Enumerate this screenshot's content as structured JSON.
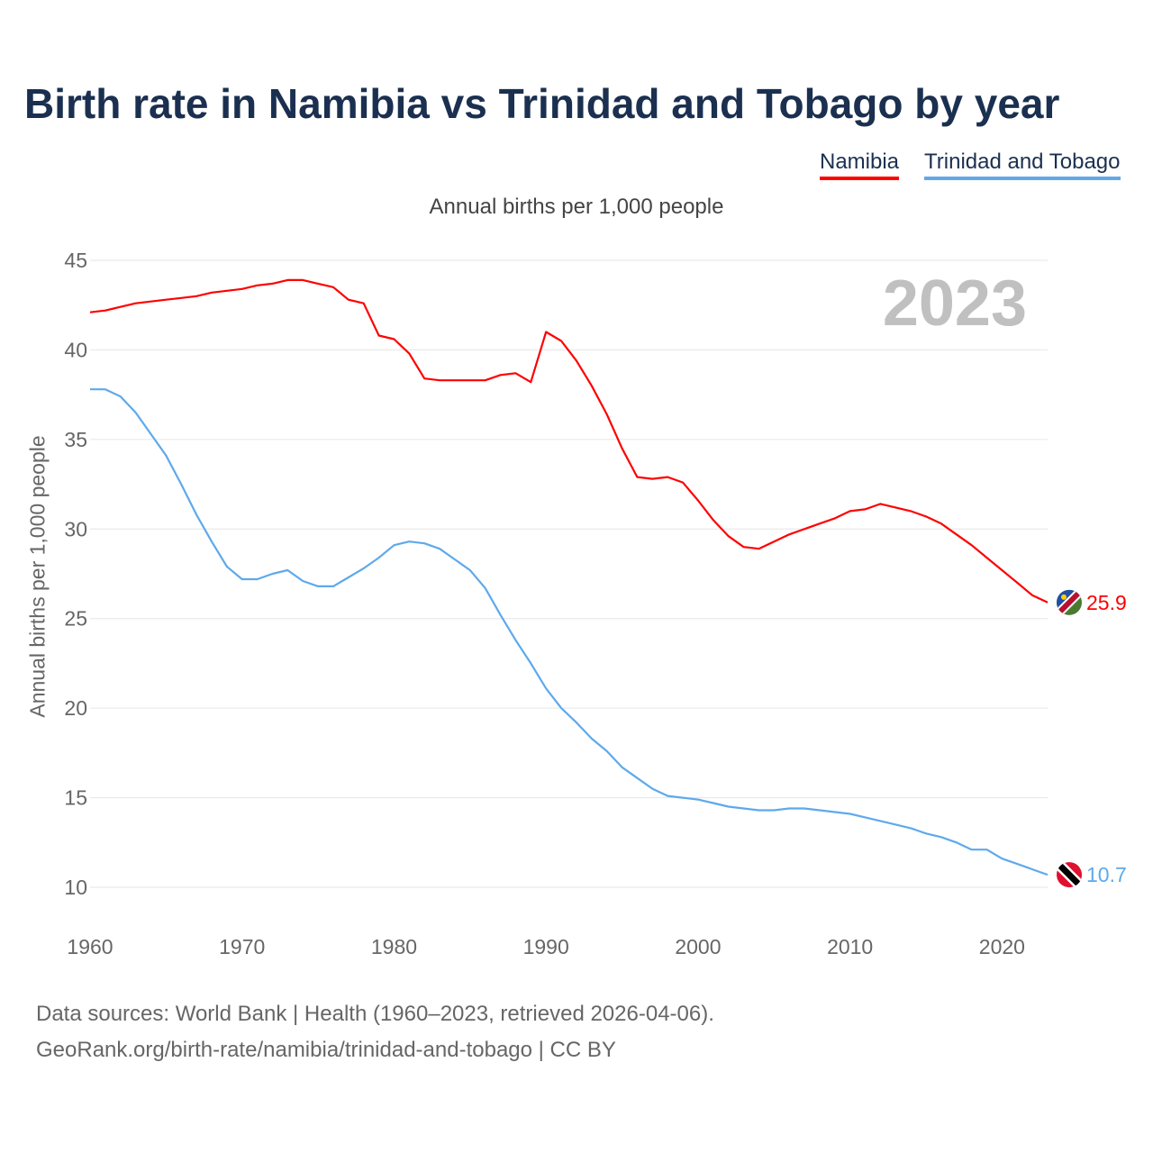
{
  "chart_data": {
    "type": "line",
    "title": "Birth rate in Namibia vs Trinidad and Tobago by year",
    "subtitle": "Annual births per 1,000 people",
    "ylabel": "Annual births per 1,000 people",
    "xlabel": "",
    "year_label": "2023",
    "xlim": [
      1960,
      2023
    ],
    "ylim": [
      10,
      45
    ],
    "x_ticks": [
      "1960",
      "1970",
      "1980",
      "1990",
      "2000",
      "2010",
      "2020"
    ],
    "y_ticks": [
      "10",
      "15",
      "20",
      "25",
      "30",
      "35",
      "40",
      "45"
    ],
    "grid": true,
    "legend_placement": "top-right",
    "x": [
      1960,
      1961,
      1962,
      1963,
      1964,
      1965,
      1966,
      1967,
      1968,
      1969,
      1970,
      1971,
      1972,
      1973,
      1974,
      1975,
      1976,
      1977,
      1978,
      1979,
      1980,
      1981,
      1982,
      1983,
      1984,
      1985,
      1986,
      1987,
      1988,
      1989,
      1990,
      1991,
      1992,
      1993,
      1994,
      1995,
      1996,
      1997,
      1998,
      1999,
      2000,
      2001,
      2002,
      2003,
      2004,
      2005,
      2006,
      2007,
      2008,
      2009,
      2010,
      2011,
      2012,
      2013,
      2014,
      2015,
      2016,
      2017,
      2018,
      2019,
      2020,
      2021,
      2022,
      2023
    ],
    "series": [
      {
        "name": "Namibia",
        "color": "#ff0000",
        "end_label": "25.9",
        "values": [
          42.1,
          42.2,
          42.4,
          42.6,
          42.7,
          42.8,
          42.9,
          43.0,
          43.2,
          43.3,
          43.4,
          43.6,
          43.7,
          43.9,
          43.9,
          43.7,
          43.5,
          42.8,
          42.6,
          40.8,
          40.6,
          39.8,
          38.4,
          38.3,
          38.3,
          38.3,
          38.3,
          38.6,
          38.7,
          38.2,
          41.0,
          40.5,
          39.4,
          38.0,
          36.4,
          34.5,
          32.9,
          32.8,
          32.9,
          32.6,
          31.6,
          30.5,
          29.6,
          29.0,
          28.9,
          29.3,
          29.7,
          30.0,
          30.3,
          30.6,
          31.0,
          31.1,
          31.4,
          31.2,
          31.0,
          30.7,
          30.3,
          29.7,
          29.1,
          28.4,
          27.7,
          27.0,
          26.3,
          25.9
        ]
      },
      {
        "name": "Trinidad and Tobago",
        "color": "#5ea9ec",
        "end_label": "10.7",
        "values": [
          37.8,
          37.8,
          37.4,
          36.5,
          35.3,
          34.1,
          32.5,
          30.8,
          29.3,
          27.9,
          27.2,
          27.2,
          27.5,
          27.7,
          27.1,
          26.8,
          26.8,
          27.3,
          27.8,
          28.4,
          29.1,
          29.3,
          29.2,
          28.9,
          28.3,
          27.7,
          26.7,
          25.2,
          23.8,
          22.5,
          21.1,
          20.0,
          19.2,
          18.3,
          17.6,
          16.7,
          16.1,
          15.5,
          15.1,
          15.0,
          14.9,
          14.7,
          14.5,
          14.4,
          14.3,
          14.3,
          14.4,
          14.4,
          14.3,
          14.2,
          14.1,
          13.9,
          13.7,
          13.5,
          13.3,
          13.0,
          12.8,
          12.5,
          12.1,
          12.1,
          11.6,
          11.3,
          11.0,
          10.7
        ]
      }
    ]
  },
  "source_line1": "Data sources: World Bank | Health (1960–2023, retrieved 2026-04-06).",
  "source_line2": "GeoRank.org/birth-rate/namibia/trinidad-and-tobago | CC BY"
}
